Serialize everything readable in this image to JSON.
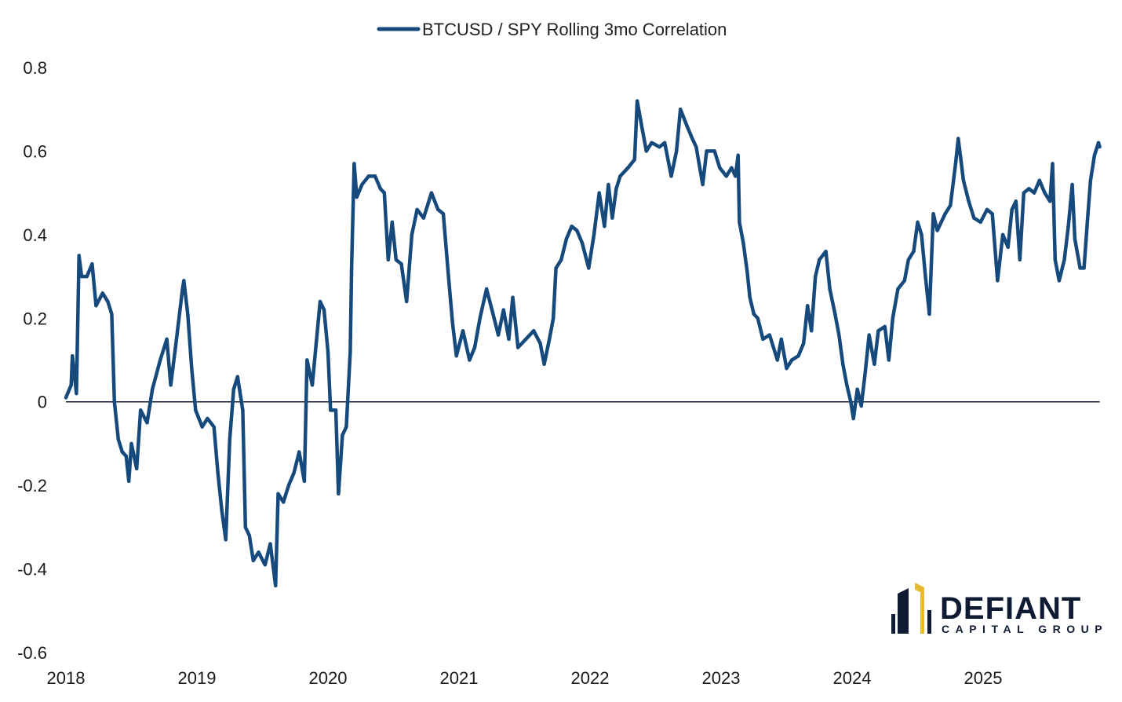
{
  "chart_data": {
    "type": "line",
    "title": "",
    "xlabel": "",
    "ylabel": "",
    "xlim": [
      2018,
      2025.89
    ],
    "ylim": [
      -0.6,
      0.8
    ],
    "grid": false,
    "legend_placement": "top-center",
    "x_tick_labels": [
      "2018",
      "2019",
      "2020",
      "2021",
      "2022",
      "2023",
      "2024",
      "2025"
    ],
    "x_ticks": [
      2018,
      2019,
      2020,
      2021,
      2022,
      2023,
      2024,
      2025
    ],
    "y_tick_labels": [
      "0.8",
      "0.6",
      "0.4",
      "0.2",
      "0",
      "-0.2",
      "-0.4",
      "-0.6"
    ],
    "y_ticks": [
      0.8,
      0.6,
      0.4,
      0.2,
      0,
      -0.2,
      -0.4,
      -0.6
    ],
    "zero_line": true,
    "series": [
      {
        "name": "BTCUSD / SPY Rolling 3mo Correlation",
        "color": "#174a7c",
        "x": [
          2018.0,
          2018.04,
          2018.05,
          2018.08,
          2018.1,
          2018.12,
          2018.16,
          2018.2,
          2018.23,
          2018.28,
          2018.32,
          2018.35,
          2018.37,
          2018.4,
          2018.43,
          2018.46,
          2018.48,
          2018.5,
          2018.54,
          2018.57,
          2018.62,
          2018.66,
          2018.72,
          2018.77,
          2018.8,
          2018.84,
          2018.89,
          2018.9,
          2018.93,
          2018.96,
          2018.99,
          2019.04,
          2019.08,
          2019.13,
          2019.16,
          2019.19,
          2019.22,
          2019.25,
          2019.28,
          2019.31,
          2019.35,
          2019.37,
          2019.4,
          2019.43,
          2019.47,
          2019.52,
          2019.56,
          2019.6,
          2019.62,
          2019.66,
          2019.7,
          2019.74,
          2019.78,
          2019.82,
          2019.84,
          2019.88,
          2019.91,
          2019.94,
          2019.97,
          2020.0,
          2020.02,
          2020.06,
          2020.08,
          2020.11,
          2020.14,
          2020.17,
          2020.18,
          2020.2,
          2020.22,
          2020.26,
          2020.31,
          2020.36,
          2020.4,
          2020.43,
          2020.46,
          2020.49,
          2020.52,
          2020.56,
          2020.6,
          2020.64,
          2020.68,
          2020.73,
          2020.79,
          2020.84,
          2020.88,
          2020.92,
          2020.95,
          2020.98,
          2021.03,
          2021.08,
          2021.12,
          2021.16,
          2021.21,
          2021.26,
          2021.3,
          2021.34,
          2021.38,
          2021.41,
          2021.45,
          2021.51,
          2021.57,
          2021.62,
          2021.65,
          2021.69,
          2021.72,
          2021.74,
          2021.78,
          2021.82,
          2021.86,
          2021.9,
          2021.94,
          2021.99,
          2022.03,
          2022.07,
          2022.11,
          2022.14,
          2022.17,
          2022.2,
          2022.23,
          2022.29,
          2022.34,
          2022.36,
          2022.4,
          2022.43,
          2022.47,
          2022.53,
          2022.57,
          2022.62,
          2022.66,
          2022.69,
          2022.74,
          2022.78,
          2022.81,
          2022.86,
          2022.89,
          2022.95,
          2022.99,
          2023.04,
          2023.08,
          2023.11,
          2023.13,
          2023.14,
          2023.17,
          2023.2,
          2023.22,
          2023.25,
          2023.28,
          2023.32,
          2023.37,
          2023.4,
          2023.43,
          2023.46,
          2023.5,
          2023.54,
          2023.59,
          2023.63,
          2023.66,
          2023.69,
          2023.72,
          2023.75,
          2023.8,
          2023.83,
          2023.87,
          2023.9,
          2023.93,
          2023.96,
          2023.99,
          2024.01,
          2024.04,
          2024.07,
          2024.1,
          2024.13,
          2024.17,
          2024.2,
          2024.25,
          2024.28,
          2024.31,
          2024.35,
          2024.4,
          2024.43,
          2024.47,
          2024.5,
          2024.53,
          2024.56,
          2024.59,
          2024.62,
          2024.65,
          2024.71,
          2024.75,
          2024.79,
          2024.81,
          2024.85,
          2024.89,
          2024.93,
          2024.98,
          2025.03,
          2025.07,
          2025.11,
          2025.15,
          2025.19,
          2025.22,
          2025.25,
          2025.28,
          2025.31,
          2025.35,
          2025.39,
          2025.43,
          2025.47,
          2025.51,
          2025.53,
          2025.55,
          2025.58,
          2025.62,
          2025.65,
          2025.68,
          2025.7,
          2025.74,
          2025.77,
          2025.8,
          2025.82,
          2025.85,
          2025.88,
          2025.89
        ],
        "y": [
          0.01,
          0.04,
          0.11,
          0.02,
          0.35,
          0.3,
          0.3,
          0.33,
          0.23,
          0.26,
          0.24,
          0.21,
          0.0,
          -0.09,
          -0.12,
          -0.13,
          -0.19,
          -0.1,
          -0.16,
          -0.02,
          -0.05,
          0.03,
          0.1,
          0.15,
          0.04,
          0.14,
          0.27,
          0.29,
          0.21,
          0.08,
          -0.02,
          -0.06,
          -0.04,
          -0.06,
          -0.17,
          -0.26,
          -0.33,
          -0.09,
          0.03,
          0.06,
          -0.02,
          -0.3,
          -0.32,
          -0.38,
          -0.36,
          -0.39,
          -0.34,
          -0.44,
          -0.22,
          -0.24,
          -0.2,
          -0.17,
          -0.12,
          -0.19,
          0.1,
          0.04,
          0.14,
          0.24,
          0.22,
          0.12,
          -0.02,
          -0.02,
          -0.22,
          -0.08,
          -0.06,
          0.12,
          0.32,
          0.57,
          0.49,
          0.52,
          0.54,
          0.54,
          0.51,
          0.5,
          0.34,
          0.43,
          0.34,
          0.33,
          0.24,
          0.4,
          0.46,
          0.44,
          0.5,
          0.46,
          0.45,
          0.3,
          0.19,
          0.11,
          0.17,
          0.1,
          0.13,
          0.2,
          0.27,
          0.21,
          0.16,
          0.22,
          0.15,
          0.25,
          0.13,
          0.15,
          0.17,
          0.14,
          0.09,
          0.15,
          0.2,
          0.32,
          0.34,
          0.39,
          0.42,
          0.41,
          0.38,
          0.32,
          0.4,
          0.5,
          0.42,
          0.52,
          0.44,
          0.51,
          0.54,
          0.56,
          0.58,
          0.72,
          0.65,
          0.6,
          0.62,
          0.61,
          0.62,
          0.54,
          0.6,
          0.7,
          0.66,
          0.63,
          0.61,
          0.52,
          0.6,
          0.6,
          0.56,
          0.54,
          0.56,
          0.54,
          0.59,
          0.43,
          0.38,
          0.31,
          0.25,
          0.21,
          0.2,
          0.15,
          0.16,
          0.13,
          0.1,
          0.15,
          0.08,
          0.1,
          0.11,
          0.14,
          0.23,
          0.17,
          0.3,
          0.34,
          0.36,
          0.27,
          0.21,
          0.16,
          0.09,
          0.04,
          0.0,
          -0.04,
          0.03,
          -0.01,
          0.07,
          0.16,
          0.09,
          0.17,
          0.18,
          0.1,
          0.2,
          0.27,
          0.29,
          0.34,
          0.36,
          0.43,
          0.4,
          0.3,
          0.21,
          0.45,
          0.41,
          0.45,
          0.47,
          0.57,
          0.63,
          0.53,
          0.48,
          0.44,
          0.43,
          0.46,
          0.45,
          0.29,
          0.4,
          0.37,
          0.46,
          0.48,
          0.34,
          0.5,
          0.51,
          0.5,
          0.53,
          0.5,
          0.48,
          0.57,
          0.34,
          0.29,
          0.34,
          0.42,
          0.52,
          0.39,
          0.32,
          0.32,
          0.45,
          0.53,
          0.59,
          0.62,
          0.61
        ]
      }
    ]
  },
  "logo": {
    "name": "DEFIANT",
    "sub": "CAPITAL GROUP",
    "navy": "#0f1b33",
    "gold": "#e8b931"
  }
}
